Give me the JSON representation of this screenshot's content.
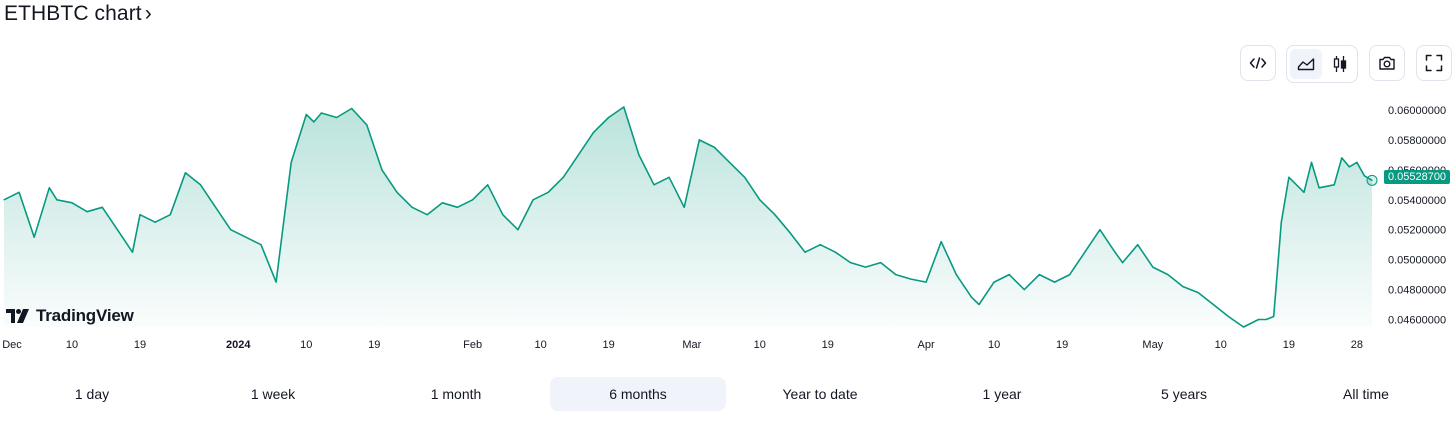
{
  "header": {
    "title": "ETHBTC chart",
    "chevron": "›"
  },
  "toolbar": {
    "embed_icon": "code-embed-icon",
    "area_icon": "area-chart-icon",
    "candles_icon": "candlestick-icon",
    "snapshot_icon": "camera-icon",
    "fullscreen_icon": "fullscreen-icon"
  },
  "brand": {
    "name": "TradingView"
  },
  "colors": {
    "line": "#089981",
    "fill_top": "rgba(8,153,129,0.28)",
    "fill_bottom": "rgba(8,153,129,0.02)",
    "badge": "#089981",
    "active_bg": "#f0f3fa"
  },
  "current_price": "0.05528700",
  "ranges": [
    "1 day",
    "1 week",
    "1 month",
    "6 months",
    "Year to date",
    "1 year",
    "5 years",
    "All time"
  ],
  "active_range": "6 months",
  "chart_data": {
    "type": "area",
    "title": "ETHBTC",
    "xlabel": "",
    "ylabel": "",
    "ylim": [
      0.0455,
      0.061
    ],
    "y_ticks": [
      "0.06000000",
      "0.05800000",
      "0.05600000",
      "0.05400000",
      "0.05200000",
      "0.05000000",
      "0.04800000",
      "0.04600000"
    ],
    "x_ticks": [
      {
        "label": "Dec",
        "bold": false
      },
      {
        "label": "10",
        "bold": false
      },
      {
        "label": "19",
        "bold": false
      },
      {
        "label": "2024",
        "bold": true
      },
      {
        "label": "10",
        "bold": false
      },
      {
        "label": "19",
        "bold": false
      },
      {
        "label": "Feb",
        "bold": false
      },
      {
        "label": "10",
        "bold": false
      },
      {
        "label": "19",
        "bold": false
      },
      {
        "label": "Mar",
        "bold": false
      },
      {
        "label": "10",
        "bold": false
      },
      {
        "label": "19",
        "bold": false
      },
      {
        "label": "Apr",
        "bold": false
      },
      {
        "label": "10",
        "bold": false
      },
      {
        "label": "19",
        "bold": false
      },
      {
        "label": "May",
        "bold": false
      },
      {
        "label": "10",
        "bold": false
      },
      {
        "label": "19",
        "bold": false
      },
      {
        "label": "28",
        "bold": false
      }
    ],
    "x_tick_days": [
      0,
      9,
      18,
      31,
      40,
      49,
      62,
      71,
      80,
      91,
      100,
      109,
      122,
      131,
      140,
      152,
      161,
      170,
      179
    ],
    "series": [
      {
        "x": [
          0,
          2,
          4,
          6,
          7,
          9,
          11,
          13,
          15,
          17,
          18,
          20,
          22,
          24,
          26,
          28,
          30,
          32,
          34,
          36,
          38,
          40,
          41,
          42,
          44,
          46,
          48,
          50,
          52,
          54,
          56,
          58,
          60,
          62,
          64,
          66,
          68,
          70,
          72,
          74,
          76,
          78,
          80,
          82,
          84,
          86,
          88,
          89,
          90,
          92,
          94,
          96,
          98,
          100,
          102,
          104,
          106,
          108,
          110,
          112,
          114,
          116,
          118,
          120,
          122,
          124,
          126,
          128,
          129,
          131,
          133,
          135,
          137,
          139,
          141,
          143,
          145,
          147,
          148,
          150,
          152,
          154,
          156,
          158,
          160,
          162,
          164,
          166,
          167,
          168,
          169,
          170,
          172,
          173,
          174,
          176,
          177,
          178,
          179,
          180,
          181
        ],
        "y": [
          0.054,
          0.0545,
          0.0515,
          0.0548,
          0.054,
          0.0538,
          0.0532,
          0.0535,
          0.052,
          0.0505,
          0.053,
          0.0525,
          0.053,
          0.0558,
          0.055,
          0.0535,
          0.052,
          0.0515,
          0.051,
          0.0485,
          0.0565,
          0.0597,
          0.0592,
          0.0598,
          0.0595,
          0.0601,
          0.059,
          0.056,
          0.0545,
          0.0535,
          0.053,
          0.0538,
          0.0535,
          0.054,
          0.055,
          0.053,
          0.052,
          0.054,
          0.0545,
          0.0555,
          0.057,
          0.0585,
          0.0595,
          0.0602,
          0.057,
          0.055,
          0.0555,
          0.0545,
          0.0535,
          0.058,
          0.0575,
          0.0565,
          0.0555,
          0.054,
          0.053,
          0.0518,
          0.0505,
          0.051,
          0.0505,
          0.0498,
          0.0495,
          0.0498,
          0.049,
          0.0487,
          0.0485,
          0.0512,
          0.049,
          0.0475,
          0.047,
          0.0485,
          0.049,
          0.048,
          0.049,
          0.0485,
          0.049,
          0.0505,
          0.052,
          0.0505,
          0.0498,
          0.051,
          0.0495,
          0.049,
          0.0482,
          0.0478,
          0.047,
          0.0462,
          0.0455,
          0.046,
          0.046,
          0.0462,
          0.0525,
          0.0555,
          0.0545,
          0.0565,
          0.0548,
          0.055,
          0.0568,
          0.0562,
          0.0565,
          0.0556,
          0.0553
        ]
      }
    ]
  }
}
